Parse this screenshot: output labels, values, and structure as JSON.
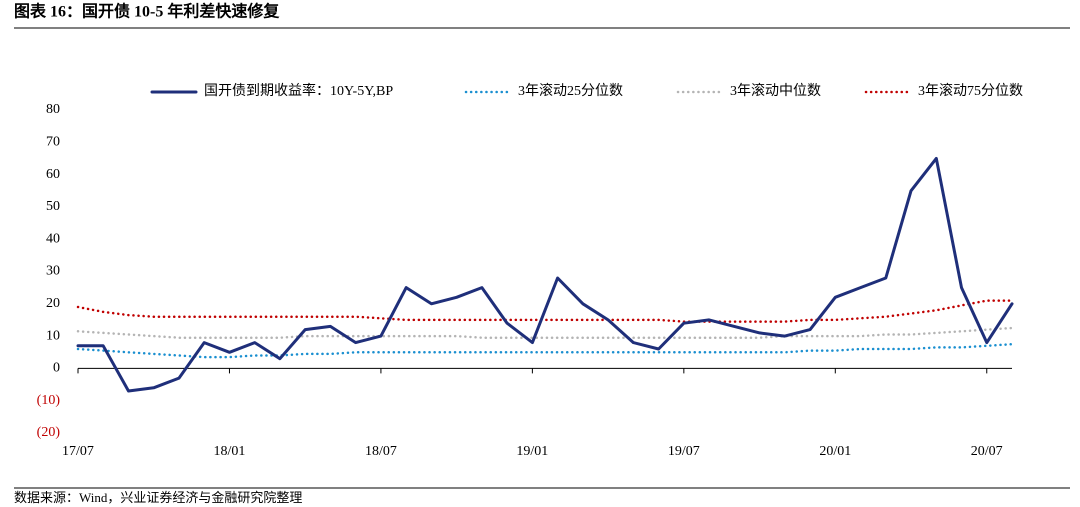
{
  "header": {
    "title": "图表 16：国开债 10-5 年利差快速修复"
  },
  "footer": {
    "source": "数据来源：Wind，兴业证券经济与金融研究院整理"
  },
  "chart_data": {
    "type": "line",
    "x": [
      "2017-07",
      "2017-08",
      "2017-09",
      "2017-10",
      "2017-11",
      "2017-12",
      "2018-01",
      "2018-02",
      "2018-03",
      "2018-04",
      "2018-05",
      "2018-06",
      "2018-07",
      "2018-08",
      "2018-09",
      "2018-10",
      "2018-11",
      "2018-12",
      "2019-01",
      "2019-02",
      "2019-03",
      "2019-04",
      "2019-05",
      "2019-06",
      "2019-07",
      "2019-08",
      "2019-09",
      "2019-10",
      "2019-11",
      "2019-12",
      "2020-01",
      "2020-02",
      "2020-03",
      "2020-04",
      "2020-05",
      "2020-06",
      "2020-07",
      "2020-08"
    ],
    "xlim": [
      "2017-07",
      "2020-08"
    ],
    "xticks": [
      {
        "value": "2017-07",
        "label": "17/07"
      },
      {
        "value": "2018-01",
        "label": "18/01"
      },
      {
        "value": "2018-07",
        "label": "18/07"
      },
      {
        "value": "2019-01",
        "label": "19/01"
      },
      {
        "value": "2019-07",
        "label": "19/07"
      },
      {
        "value": "2020-01",
        "label": "20/01"
      },
      {
        "value": "2020-07",
        "label": "20/07"
      }
    ],
    "ylim": [
      -20,
      80
    ],
    "yticks": [
      {
        "value": -20,
        "label": "(20)"
      },
      {
        "value": -10,
        "label": "(10)"
      },
      0,
      10,
      20,
      30,
      40,
      50,
      60,
      70,
      80
    ],
    "negative_tick_color": "#c00000",
    "legend": "top",
    "series": [
      {
        "name": "国开债到期收益率：10Y-5Y,BP",
        "color": "#1f2f7a",
        "style": "solid",
        "values": [
          7,
          7,
          -7,
          -6,
          -3,
          8,
          5,
          8,
          3,
          12,
          13,
          8,
          10,
          25,
          20,
          22,
          25,
          14,
          8,
          28,
          20,
          15,
          8,
          6,
          14,
          15,
          13,
          11,
          10,
          12,
          22,
          25,
          28,
          55,
          65,
          25,
          8,
          20
        ]
      },
      {
        "name": "3年滚动25分位数",
        "color": "#1a8fd0",
        "style": "dotted",
        "values": [
          6,
          5.5,
          5,
          4.5,
          4,
          3.5,
          3.5,
          4,
          4,
          4.5,
          4.5,
          5,
          5,
          5,
          5,
          5,
          5,
          5,
          5,
          5,
          5,
          5,
          5,
          5,
          5,
          5,
          5,
          5,
          5,
          5.5,
          5.5,
          6,
          6,
          6,
          6.5,
          6.5,
          7,
          7.5
        ]
      },
      {
        "name": "3年滚动中位数",
        "color": "#b4b4b4",
        "style": "dotted",
        "values": [
          11.5,
          11,
          10.5,
          10,
          9.5,
          9.5,
          9.5,
          9.5,
          9.5,
          10,
          10,
          10,
          10,
          10,
          10,
          10,
          9.5,
          9.5,
          9.5,
          9.5,
          9.5,
          9.5,
          9.5,
          9.5,
          9.5,
          9.5,
          9.5,
          9.5,
          10,
          10,
          10,
          10,
          10.5,
          10.5,
          11,
          11.5,
          12,
          12.5
        ]
      },
      {
        "name": "3年滚动75分位数",
        "color": "#c00000",
        "style": "dotted",
        "values": [
          19,
          17.5,
          16.5,
          16,
          16,
          16,
          16,
          16,
          16,
          16,
          16,
          16,
          15.5,
          15,
          15,
          15,
          15,
          15,
          15,
          15,
          15,
          15,
          15,
          15,
          14.5,
          14.5,
          14.5,
          14.5,
          14.5,
          15,
          15,
          15.5,
          16,
          17,
          18,
          19.5,
          21,
          21
        ]
      }
    ]
  }
}
